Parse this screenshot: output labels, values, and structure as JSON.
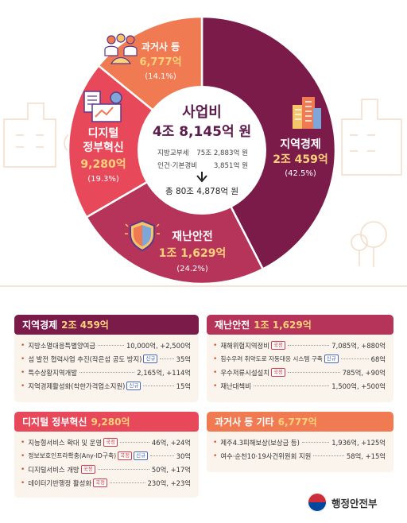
{
  "chart_data": {
    "type": "pie",
    "center": {
      "title": "사업비",
      "total_line": "4조 8,145억 원",
      "sub_lines": [
        {
          "label": "지방교부세",
          "value": "75조 2,883억 원"
        },
        {
          "label": "인건·기본경비",
          "value": "3,851억 원"
        }
      ],
      "grand_total": "총 80조 4,878억 원"
    },
    "slices": [
      {
        "label": "지역경제",
        "amount": "2조 459억",
        "percent": 42.5,
        "percent_text": "(42.5%)",
        "color": "#7b1b4a"
      },
      {
        "label": "재난안전",
        "amount": "1조 1,629억",
        "percent": 24.2,
        "percent_text": "(24.2%)",
        "color": "#b63359"
      },
      {
        "label": "디지털 정부혁신",
        "label_lines": [
          "디지털",
          "정부혁신"
        ],
        "amount": "9,280억",
        "percent": 19.3,
        "percent_text": "(19.3%)",
        "color": "#e8495a"
      },
      {
        "label": "과거사 등",
        "amount": "6,777억",
        "percent": 14.1,
        "percent_text": "(14.1%)",
        "color": "#f07a52"
      }
    ]
  },
  "colors": {
    "dark_maroon": "#7b1b4a",
    "rose": "#b63359",
    "red": "#e8495a",
    "orange": "#f07a52",
    "amount_yellow": "#ffd27a",
    "card_bg": "#fbf4ec"
  },
  "cards": {
    "regional_economy": {
      "title": "지역경제",
      "amount": "2조 459억",
      "items": [
        {
          "name": "지방소멸대응특별양여금",
          "tag": "",
          "value": "10,000억, +2,500억"
        },
        {
          "name": "섬 발전 협력사업 추진(작은섬 공도 방지)",
          "tag": "신규",
          "value": "35억"
        },
        {
          "name": "특수상황지역개발",
          "tag": "",
          "value": "2,165억, +114억"
        },
        {
          "name": "지역경제활성화(착한가격업소지원)",
          "tag": "신규",
          "value": "15억"
        }
      ]
    },
    "disaster_safety": {
      "title": "재난안전",
      "amount": "1조 1,629억",
      "items": [
        {
          "name": "재해위험지역정비",
          "tag": "국정",
          "value": "7,085억, +880억"
        },
        {
          "name": "침수우려 취약도로 자동대응 시스템 구축",
          "tag": "신규",
          "value": "68억"
        },
        {
          "name": "우수저류시설설치",
          "tag": "국정",
          "value": "785억, +90억"
        },
        {
          "name": "재난대책비",
          "tag": "",
          "value": "1,500억, +500억"
        }
      ]
    },
    "digital_gov": {
      "title": "디지털 정부혁신",
      "amount": "9,280억",
      "items": [
        {
          "name": "지능형서비스 확대 및 운영",
          "tags": [
            "국정"
          ],
          "value": "46억, +24억"
        },
        {
          "name": "정보보호인프라확충(Any-ID구축)",
          "tags": [
            "국정",
            "신규"
          ],
          "value": "30억"
        },
        {
          "name": "디지털서비스 개방",
          "tags": [
            "국정"
          ],
          "value": "50억, +17억"
        },
        {
          "name": "데이터기반행정 활성화",
          "tags": [
            "국정"
          ],
          "value": "230억, +23억"
        }
      ]
    },
    "past_history": {
      "title": "과거사 등 기타",
      "amount": "6,777억",
      "items": [
        {
          "name": "제주4.3피해보상(보상금 등)",
          "tag": "",
          "value": "1,936억, +125억"
        },
        {
          "name": "여수·순천10·19사건위원회 지원",
          "tag": "",
          "value": "58억, +15억"
        }
      ]
    }
  },
  "footer": {
    "ministry": "행정안전부",
    "icon": "government-emblem-icon"
  },
  "icons": [
    "building-icon",
    "shield-icon",
    "digital-devices-icon",
    "people-icon"
  ]
}
